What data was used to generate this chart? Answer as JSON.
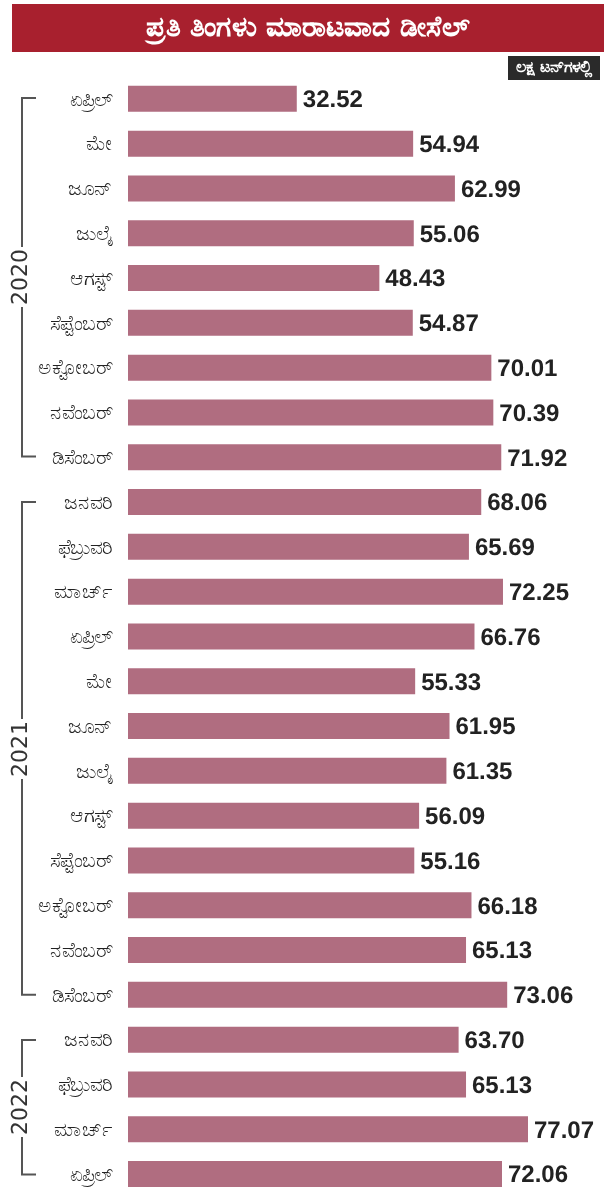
{
  "chart_data": {
    "type": "bar",
    "orientation": "horizontal",
    "title": "ಪ್ರತಿ ತಿಂಗಳು ಮಾರಾಟವಾದ ಡೀಸೆಲ್",
    "subtitle": "ಲಕ್ಷ ಟನ್‌ಗಳಲ್ಲಿ",
    "categories": [
      "ಏಪ್ರಿಲ್",
      "ಮೇ",
      "ಜೂನ್",
      "ಜುಲೈ",
      "ಆಗಸ್ಟ್",
      "ಸೆಪ್ಟೆಂಬರ್",
      "ಅಕ್ಟೋಬರ್",
      "ನವೆಂಬರ್",
      "ಡಿಸೆಂಬರ್",
      "ಜನವರಿ",
      "ಫೆಬ್ರುವರಿ",
      "ಮಾರ್ಚ್",
      "ಏಪ್ರಿಲ್",
      "ಮೇ",
      "ಜೂನ್",
      "ಜುಲೈ",
      "ಆಗಸ್ಟ್",
      "ಸೆಪ್ಟೆಂಬರ್",
      "ಅಕ್ಟೋಬರ್",
      "ನವೆಂಬರ್",
      "ಡಿಸೆಂಬರ್",
      "ಜನವರಿ",
      "ಫೆಬ್ರುವರಿ",
      "ಮಾರ್ಚ್",
      "ಏಪ್ರಿಲ್"
    ],
    "values": [
      32.52,
      54.94,
      62.99,
      55.06,
      48.43,
      54.87,
      70.01,
      70.39,
      71.92,
      68.06,
      65.69,
      72.25,
      66.76,
      55.33,
      61.95,
      61.35,
      56.09,
      55.16,
      66.18,
      65.13,
      73.06,
      63.7,
      65.13,
      77.07,
      72.06
    ],
    "value_labels": [
      "32.52",
      "54.94",
      "62.99",
      "55.06",
      "48.43",
      "54.87",
      "70.01",
      "70.39",
      "71.92",
      "68.06",
      "65.69",
      "72.25",
      "66.76",
      "55.33",
      "61.95",
      "61.35",
      "56.09",
      "55.16",
      "66.18",
      "65.13",
      "73.06",
      "63.70",
      "65.13",
      "77.07",
      "72.06"
    ],
    "color": "#b06d80",
    "annotations": [
      "2020",
      "2021",
      "2022"
    ]
  }
}
